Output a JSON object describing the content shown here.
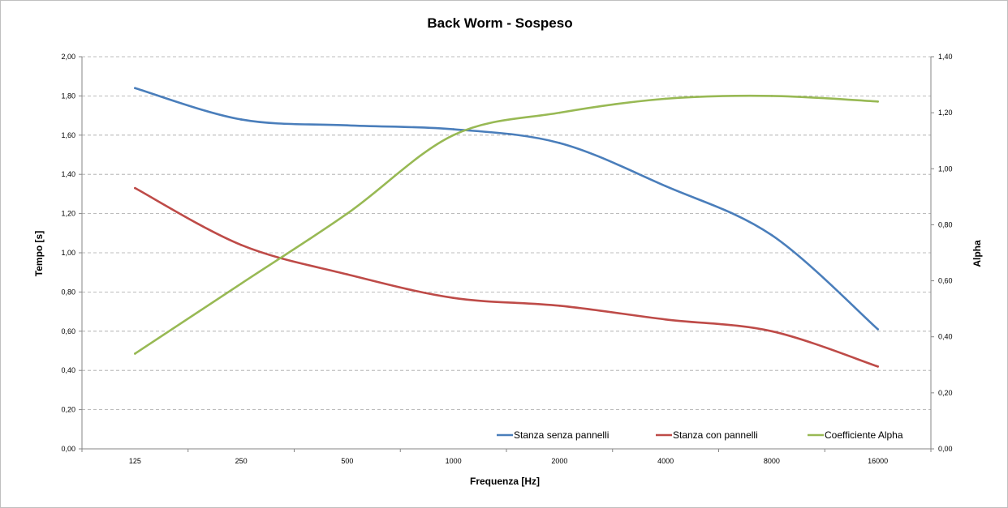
{
  "chart_data": {
    "type": "line",
    "title": "Back Worm - Sospeso",
    "xlabel": "Frequenza [Hz]",
    "ylabel": "Tempo [s]",
    "y2label": "Alpha",
    "categories": [
      "125",
      "250",
      "500",
      "1000",
      "2000",
      "4000",
      "8000",
      "16000"
    ],
    "ylim": [
      0,
      2
    ],
    "y2lim": [
      0,
      1.4
    ],
    "yticks": [
      "0,00",
      "0,20",
      "0,40",
      "0,60",
      "0,80",
      "1,00",
      "1,20",
      "1,40",
      "1,60",
      "1,80",
      "2,00"
    ],
    "y2ticks": [
      "0,00",
      "0,20",
      "0,40",
      "0,60",
      "0,80",
      "1,00",
      "1,20",
      "1,40"
    ],
    "grid": true,
    "legend_position": "bottom-right",
    "smooth": true,
    "series": [
      {
        "name": "Stanza senza pannelli",
        "axis": "left",
        "color": "#4a7ebb",
        "values": [
          1.84,
          1.68,
          1.65,
          1.63,
          1.56,
          1.34,
          1.09,
          0.61
        ]
      },
      {
        "name": "Stanza con pannelli",
        "axis": "left",
        "color": "#be4b48",
        "values": [
          1.33,
          1.04,
          0.89,
          0.77,
          0.73,
          0.66,
          0.6,
          0.42
        ]
      },
      {
        "name": "Coefficiente Alpha",
        "axis": "right",
        "color": "#98b954",
        "values": [
          0.34,
          0.59,
          0.84,
          1.12,
          1.2,
          1.25,
          1.26,
          1.24
        ]
      }
    ]
  }
}
